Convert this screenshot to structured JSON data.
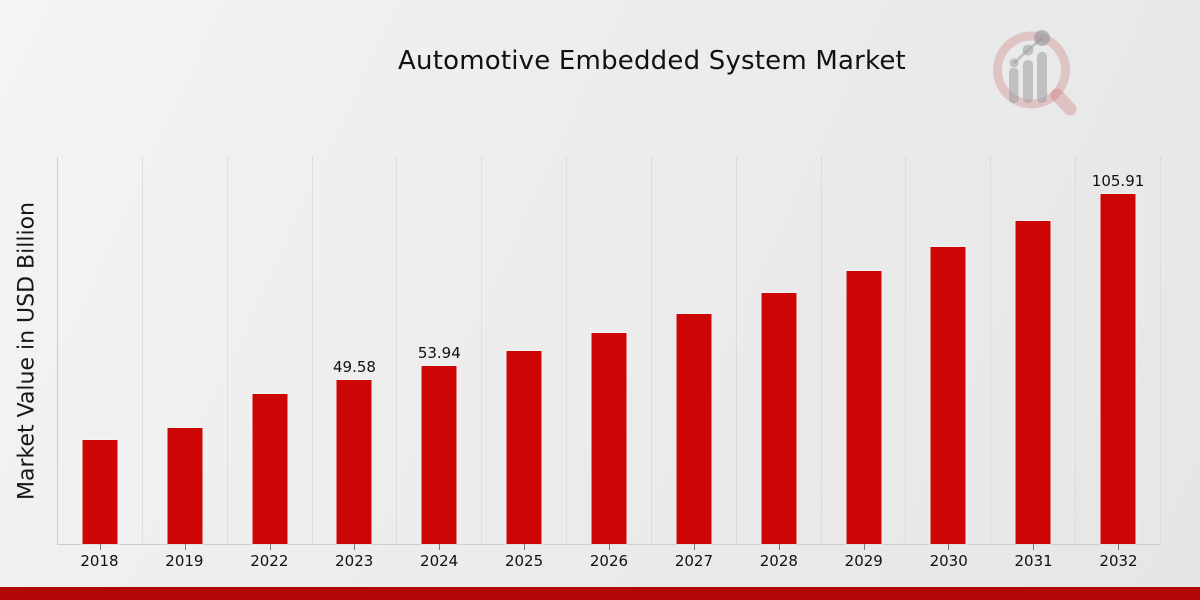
{
  "title": "Automotive Embedded System Market",
  "y_axis_title": "Market Value in USD Billion",
  "logo": {
    "name": "magnifier-bar-chart-logo",
    "ring_color": "rgba(196,88,88,0.25)",
    "bar_color": "rgba(152,152,158,0.5)"
  },
  "footer": {
    "accent_color": "#b20808"
  },
  "chart_data": {
    "type": "bar",
    "title": "Automotive Embedded System Market",
    "xlabel": "",
    "ylabel": "Market Value in USD Billion",
    "categories": [
      "2018",
      "2019",
      "2022",
      "2023",
      "2024",
      "2025",
      "2026",
      "2027",
      "2028",
      "2029",
      "2030",
      "2031",
      "2032"
    ],
    "values": [
      31.5,
      35.2,
      45.5,
      49.58,
      53.94,
      58.5,
      63.9,
      69.6,
      75.9,
      82.5,
      89.8,
      97.7,
      105.91
    ],
    "value_labels": {
      "2023": "49.58",
      "2024": "53.94",
      "2032": "105.91"
    },
    "bar_color": "#cc0505",
    "ylim": [
      0,
      117
    ],
    "grid": "vertical-dotted",
    "legend": "none"
  }
}
